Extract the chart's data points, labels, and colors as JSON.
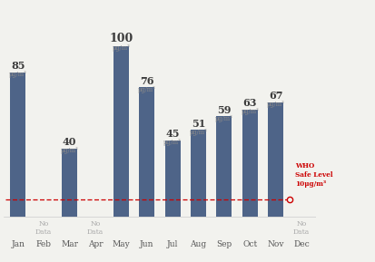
{
  "months": [
    "Jan",
    "Feb",
    "Mar",
    "Apr",
    "May",
    "Jun",
    "Jul",
    "Aug",
    "Sep",
    "Oct",
    "Nov",
    "Dec"
  ],
  "values": [
    85,
    null,
    40,
    null,
    100,
    76,
    45,
    51,
    59,
    63,
    67,
    null
  ],
  "bar_color": "#4e6488",
  "who_level": 10,
  "who_line_color": "#cc0000",
  "unit": "μg/m³",
  "ylim": [
    0,
    115
  ],
  "background_color": "#f2f2ee",
  "bar_width": 0.6,
  "label_fontsize": 8,
  "unit_fontsize": 4.8,
  "nodata_fontsize": 5.5,
  "month_fontsize": 6.5
}
